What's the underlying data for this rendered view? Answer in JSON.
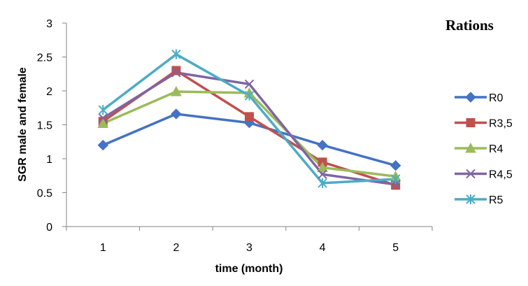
{
  "chart_data": {
    "type": "line",
    "xlabel": "time (month)",
    "ylabel": "SGR male and female",
    "legend_title": "Rations",
    "legend_position": "right",
    "grid": false,
    "x": [
      1,
      2,
      3,
      4,
      5
    ],
    "ylim": [
      0,
      3
    ],
    "yticks": [
      "0",
      "0.5",
      "1",
      "1.5",
      "2",
      "2.5",
      "3"
    ],
    "series": [
      {
        "name": "R0",
        "color": "#4472C4",
        "marker": "diamond",
        "values": [
          1.2,
          1.66,
          1.53,
          1.2,
          0.9
        ]
      },
      {
        "name": "R3,5",
        "color": "#C0504D",
        "marker": "square",
        "values": [
          1.55,
          2.3,
          1.62,
          0.95,
          0.61
        ]
      },
      {
        "name": "R4",
        "color": "#9BBB59",
        "marker": "triangle",
        "values": [
          1.52,
          1.99,
          1.97,
          0.87,
          0.74
        ]
      },
      {
        "name": "R4,5",
        "color": "#8064A2",
        "marker": "x",
        "values": [
          1.6,
          2.27,
          2.1,
          0.77,
          0.62
        ]
      },
      {
        "name": "R5",
        "color": "#4BACC6",
        "marker": "asterisk",
        "values": [
          1.72,
          2.54,
          1.93,
          0.64,
          0.7
        ]
      }
    ]
  }
}
